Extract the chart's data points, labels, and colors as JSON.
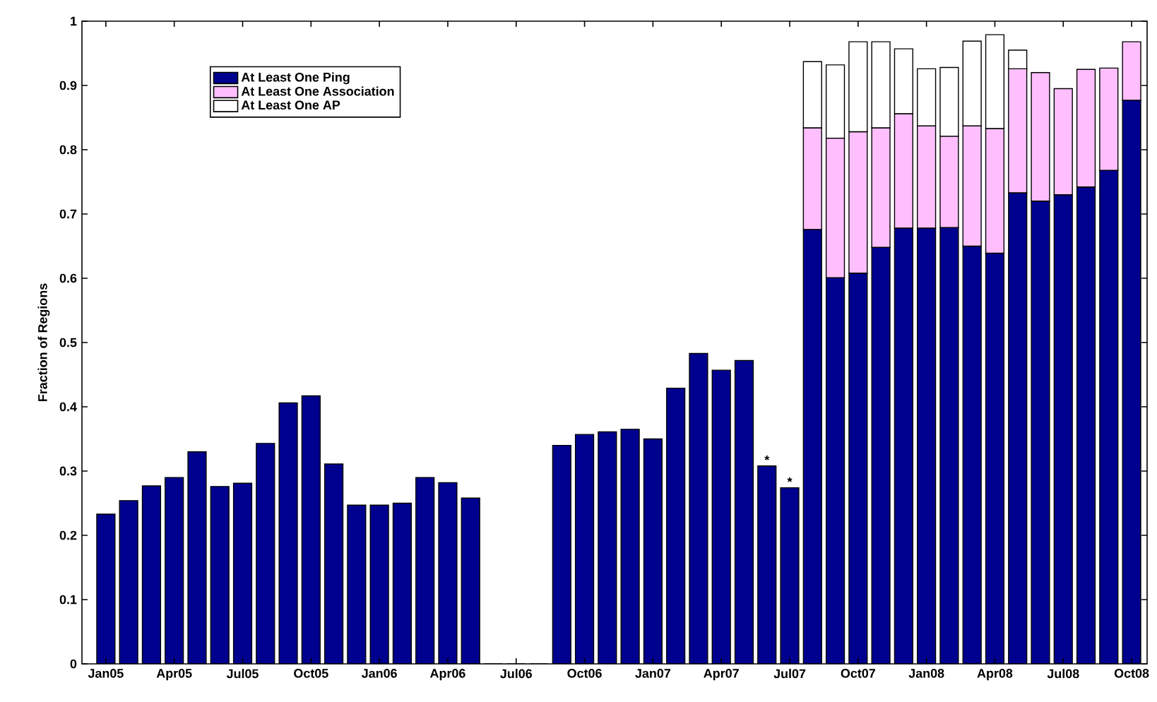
{
  "chart_data": {
    "type": "bar",
    "stacked": true,
    "ylabel": "Fraction of Regions",
    "categories": [
      "Jan05",
      null,
      null,
      "Apr05",
      null,
      null,
      "Jul05",
      null,
      null,
      "Oct05",
      null,
      null,
      "Jan06",
      null,
      null,
      "Apr06",
      null,
      null,
      "Jul06",
      null,
      null,
      "Oct06",
      null,
      null,
      "Jan07",
      null,
      null,
      "Apr07",
      null,
      null,
      "Jul07",
      null,
      null,
      "Oct07",
      null,
      null,
      "Jan08",
      null,
      null,
      "Apr08",
      null,
      null,
      "Jul08",
      null,
      null,
      "Oct08"
    ],
    "series": [
      {
        "name": "At Least One Ping",
        "color": "#00008f",
        "values": [
          0.233,
          0.254,
          0.277,
          0.29,
          0.33,
          0.276,
          0.281,
          0.343,
          0.406,
          0.417,
          0.311,
          0.247,
          0.247,
          0.25,
          0.29,
          0.282,
          0.258,
          0,
          0,
          0,
          0.34,
          0.357,
          0.361,
          0.365,
          0.35,
          0.429,
          0.483,
          0.457,
          0.472,
          0.308,
          0.274,
          0.676,
          0.601,
          0.608,
          0.648,
          0.678,
          0.678,
          0.679,
          0.65,
          0.639,
          0.733,
          0.72,
          0.73,
          0.742,
          0.768,
          0.877
        ]
      },
      {
        "name": "At Least One Association",
        "color": "#ffbfff",
        "values": [
          null,
          null,
          null,
          null,
          null,
          null,
          null,
          null,
          null,
          null,
          null,
          null,
          null,
          null,
          null,
          null,
          null,
          null,
          null,
          null,
          null,
          null,
          null,
          null,
          null,
          null,
          null,
          null,
          null,
          null,
          null,
          0.158,
          0.217,
          0.22,
          0.186,
          0.178,
          0.159,
          0.142,
          0.187,
          0.194,
          0.193,
          0.2,
          0.165,
          0.183,
          0.159,
          0.091
        ]
      },
      {
        "name": "At Least One AP",
        "color": "#ffffff",
        "values": [
          null,
          null,
          null,
          null,
          null,
          null,
          null,
          null,
          null,
          null,
          null,
          null,
          null,
          null,
          null,
          null,
          null,
          null,
          null,
          null,
          null,
          null,
          null,
          null,
          null,
          null,
          null,
          null,
          null,
          null,
          null,
          0.103,
          0.114,
          0.14,
          0.134,
          0.101,
          0.089,
          0.107,
          0.132,
          0.146,
          0.029,
          null,
          null,
          null,
          null,
          null
        ]
      }
    ],
    "ylim": [
      0,
      1
    ],
    "yticks": [
      0,
      0.1,
      0.2,
      0.3,
      0.4,
      0.5,
      0.6,
      0.7,
      0.8,
      0.9,
      1
    ],
    "legend": "top left",
    "annotations": [
      {
        "text": "*",
        "y": 0.308
      },
      {
        "text": "*",
        "y": 0.274
      }
    ]
  }
}
